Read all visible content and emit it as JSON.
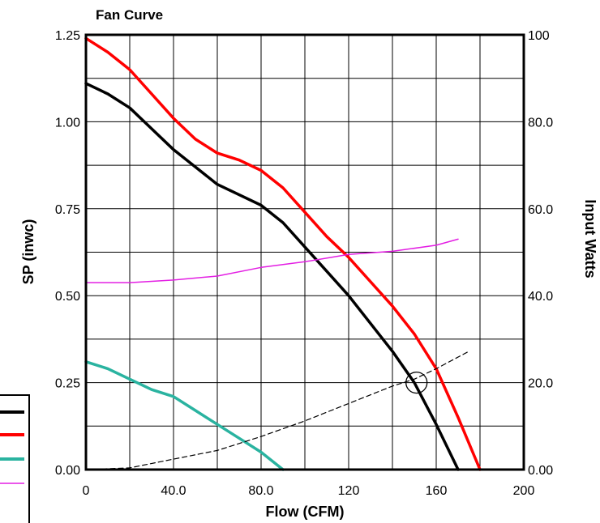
{
  "chart_data": {
    "type": "line",
    "title": "Fan Curve",
    "xlabel": "Flow (CFM)",
    "ylabel": "SP (inwc)",
    "y2label": "Input Watts",
    "xlim": [
      0,
      200
    ],
    "ylim": [
      0,
      1.25
    ],
    "y2lim": [
      0,
      100
    ],
    "x_ticks": [
      "0",
      "40.0",
      "80.0",
      "120",
      "160",
      "200"
    ],
    "y_ticks": [
      "0.00",
      "0.25",
      "0.50",
      "0.75",
      "1.00",
      "1.25"
    ],
    "y2_ticks": [
      "0.00",
      "20.0",
      "40.0",
      "60.0",
      "80.0",
      "100"
    ],
    "grid": true,
    "legend": "bottom-left (partially cut off)",
    "series": [
      {
        "axis": "left",
        "color": "#000000",
        "style": "solid",
        "x": [
          0,
          10,
          20,
          30,
          40,
          50,
          60,
          70,
          80,
          90,
          100,
          110,
          120,
          130,
          140,
          150,
          160,
          170
        ],
        "y": [
          1.11,
          1.08,
          1.04,
          0.98,
          0.92,
          0.87,
          0.82,
          0.79,
          0.76,
          0.71,
          0.64,
          0.57,
          0.5,
          0.42,
          0.34,
          0.25,
          0.13,
          0.0
        ]
      },
      {
        "axis": "left",
        "color": "#ff0000",
        "style": "solid",
        "x": [
          0,
          10,
          20,
          30,
          40,
          50,
          60,
          70,
          80,
          90,
          100,
          110,
          120,
          130,
          140,
          150,
          160,
          170,
          180
        ],
        "y": [
          1.24,
          1.2,
          1.15,
          1.08,
          1.01,
          0.95,
          0.91,
          0.89,
          0.86,
          0.81,
          0.74,
          0.67,
          0.61,
          0.54,
          0.47,
          0.39,
          0.29,
          0.15,
          0.0
        ]
      },
      {
        "axis": "left",
        "color": "#2ab3a0",
        "style": "solid",
        "x": [
          0,
          10,
          20,
          30,
          40,
          50,
          60,
          70,
          80,
          90
        ],
        "y": [
          0.31,
          0.29,
          0.26,
          0.23,
          0.21,
          0.17,
          0.13,
          0.09,
          0.05,
          0.0
        ]
      },
      {
        "axis": "right",
        "color": "#e31ee3",
        "style": "solid",
        "x": [
          0,
          10,
          20,
          30,
          40,
          60,
          80,
          100,
          120,
          140,
          160,
          170
        ],
        "y": [
          43.0,
          43.0,
          43.0,
          43.3,
          43.6,
          44.5,
          46.5,
          47.8,
          49.5,
          50.2,
          51.6,
          53.0
        ]
      },
      {
        "axis": "left",
        "color": "#000000",
        "style": "dashed",
        "x": [
          0,
          20,
          40,
          60,
          80,
          100,
          120,
          140,
          150,
          160,
          175
        ],
        "y": [
          0.0,
          0.005,
          0.03,
          0.055,
          0.095,
          0.14,
          0.19,
          0.24,
          0.26,
          0.29,
          0.34
        ]
      }
    ],
    "marker": {
      "type": "circle",
      "x": 151,
      "y": 0.25
    },
    "colors": {
      "grid": "#000000",
      "background": "#ffffff"
    }
  }
}
